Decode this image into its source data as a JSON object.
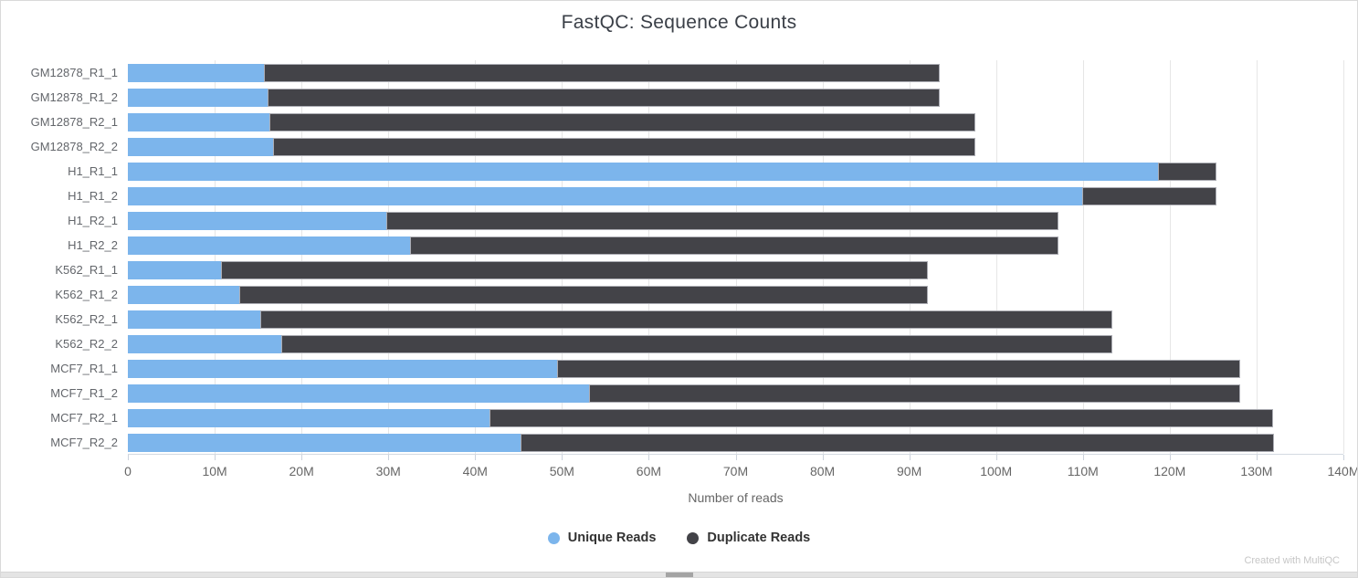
{
  "title": "FastQC: Sequence Counts",
  "chart_data": {
    "type": "bar",
    "orientation": "horizontal",
    "stacked": true,
    "title": "FastQC: Sequence Counts",
    "xlabel": "Number of reads",
    "xlim_reads": [
      0,
      140000000
    ],
    "x_tick_step_reads": 10000000,
    "x_ticks": [
      "0",
      "10M",
      "20M",
      "30M",
      "40M",
      "50M",
      "60M",
      "70M",
      "80M",
      "90M",
      "100M",
      "110M",
      "120M",
      "130M",
      "140M"
    ],
    "grid": true,
    "legend_position": "bottom",
    "categories": [
      "GM12878_R1_1",
      "GM12878_R1_2",
      "GM12878_R2_1",
      "GM12878_R2_2",
      "H1_R1_1",
      "H1_R1_2",
      "H1_R2_1",
      "H1_R2_2",
      "K562_R1_1",
      "K562_R1_2",
      "K562_R2_1",
      "K562_R2_2",
      "MCF7_R1_1",
      "MCF7_R1_2",
      "MCF7_R2_1",
      "MCF7_R2_2"
    ],
    "series": [
      {
        "name": "Unique Reads",
        "color": "#7cb5ec",
        "values_millions": [
          15.7,
          16.1,
          16.3,
          16.7,
          118.6,
          109.9,
          29.8,
          32.5,
          10.7,
          12.8,
          15.2,
          17.7,
          49.4,
          53.1,
          41.7,
          45.2
        ]
      },
      {
        "name": "Duplicate Reads",
        "color": "#434348",
        "values_millions": [
          77.8,
          77.4,
          81.3,
          80.9,
          6.8,
          15.5,
          77.4,
          74.7,
          81.4,
          79.3,
          98.2,
          95.7,
          78.7,
          75.0,
          90.2,
          86.8
        ]
      }
    ],
    "totals_millions": [
      93.5,
      93.5,
      97.6,
      97.6,
      125.4,
      125.4,
      107.2,
      107.2,
      92.1,
      92.1,
      113.4,
      113.4,
      128.1,
      128.1,
      131.9,
      132.0
    ]
  },
  "footer": {
    "credit": "Created with MultiQC"
  },
  "colors": {
    "unique": "#7cb5ec",
    "duplicate": "#434348",
    "gridline": "#e6e6e6",
    "axis_text": "#666666",
    "title_text": "#3a3f47"
  }
}
